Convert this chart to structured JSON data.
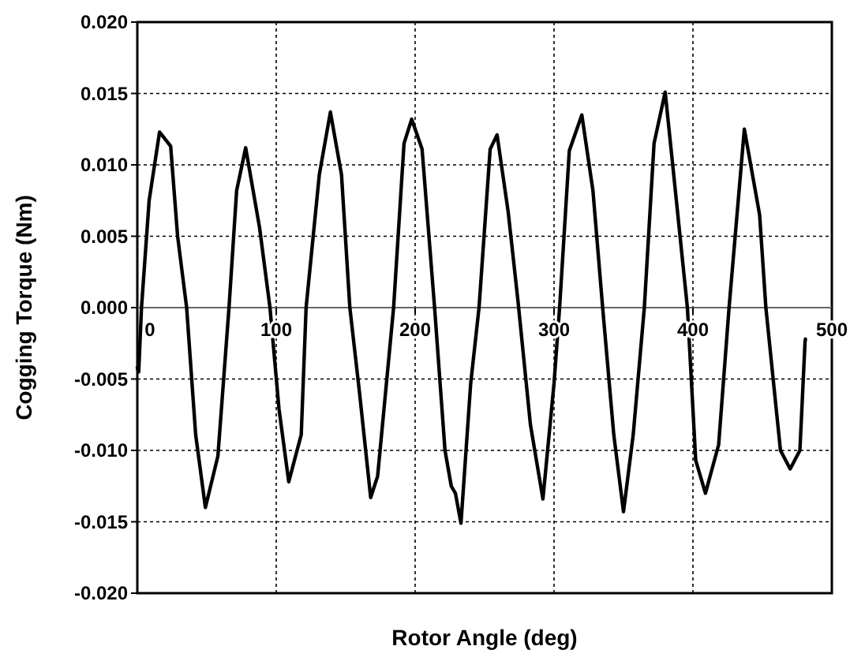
{
  "chart_data": {
    "type": "line",
    "xlabel": "Rotor Angle (deg)",
    "ylabel": "Cogging Torque (Nm)",
    "xlim": [
      0,
      500
    ],
    "xticks": [
      0,
      100,
      200,
      300,
      400,
      500
    ],
    "ylim": [
      -0.02,
      0.02
    ],
    "yticks": [
      {
        "value": -0.02,
        "label": "-0.020"
      },
      {
        "value": -0.015,
        "label": "-0.015"
      },
      {
        "value": -0.01,
        "label": "-0.010"
      },
      {
        "value": -0.005,
        "label": "-0.005"
      },
      {
        "value": 0,
        "label": "0.000"
      },
      {
        "value": 0.005,
        "label": "0.005"
      },
      {
        "value": 0.01,
        "label": "0.010"
      },
      {
        "value": 0.015,
        "label": "0.015"
      },
      {
        "value": 0.02,
        "label": "0.020"
      }
    ],
    "grid": true,
    "marker": "none",
    "line_style": "solid",
    "series": [
      {
        "color": "#000000",
        "x": [
          0,
          1,
          3,
          8.5,
          16,
          24,
          29,
          35.5,
          42,
          49,
          58,
          66,
          71.5,
          78,
          88,
          95.5,
          102,
          109,
          118,
          121.5,
          131,
          139,
          147,
          153,
          160,
          168,
          173,
          184.5,
          192,
          197.5,
          205,
          214,
          221.5,
          226,
          229,
          233,
          240,
          246,
          254,
          259,
          267,
          274,
          283,
          292,
          300,
          304,
          311,
          320,
          328,
          335,
          343,
          350,
          357,
          365,
          372,
          380,
          385,
          396,
          402,
          409,
          418.5,
          426,
          437,
          448,
          452.5,
          463,
          470,
          477,
          480.7,
          481
        ],
        "values": [
          -0.0042,
          -0.0045,
          0,
          0.0075,
          0.0123,
          0.0113,
          0.005,
          0,
          -0.0089,
          -0.014,
          -0.0104,
          0,
          0.0082,
          0.0112,
          0.0056,
          0,
          -0.0071,
          -0.0122,
          -0.0089,
          0,
          0.0093,
          0.0137,
          0.0093,
          0,
          -0.006,
          -0.0133,
          -0.0118,
          0,
          0.0115,
          0.0132,
          0.0111,
          0,
          -0.01,
          -0.0125,
          -0.013,
          -0.0151,
          -0.0053,
          0,
          0.0111,
          0.0121,
          0.0067,
          0.0005,
          -0.0082,
          -0.0134,
          -0.0053,
          0,
          0.011,
          0.0135,
          0.0082,
          0,
          -0.0089,
          -0.0143,
          -0.0089,
          0,
          0.0115,
          0.0151,
          0.0104,
          0,
          -0.0107,
          -0.013,
          -0.0096,
          0,
          0.0125,
          0.0065,
          0,
          -0.01,
          -0.0113,
          -0.01,
          -0.0024,
          -0.0022
        ]
      }
    ]
  }
}
